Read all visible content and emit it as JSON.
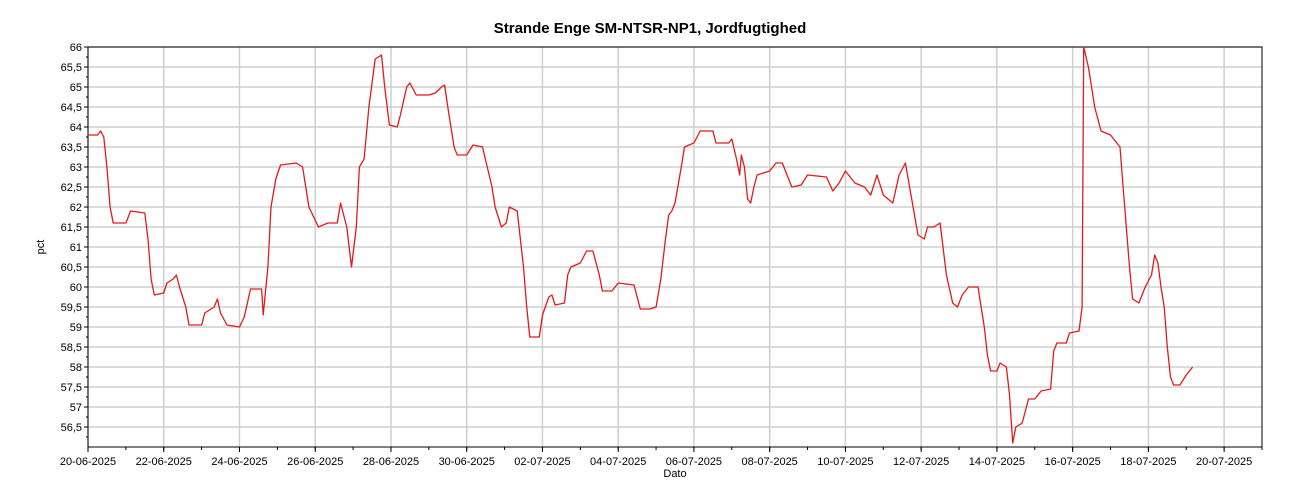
{
  "chart_data": {
    "type": "line",
    "title": "Strande Enge SM-NTSR-NP1, Jordfugtighed",
    "xlabel": "Dato",
    "ylabel": "pct",
    "grid": true,
    "xlim": [
      "2025-06-20",
      "2025-07-21"
    ],
    "ylim": [
      56,
      66
    ],
    "x_ticks": [
      "20-06-2025",
      "22-06-2025",
      "24-06-2025",
      "26-06-2025",
      "28-06-2025",
      "30-06-2025",
      "02-07-2025",
      "04-07-2025",
      "06-07-2025",
      "08-07-2025",
      "10-07-2025",
      "12-07-2025",
      "14-07-2025",
      "16-07-2025",
      "18-07-2025",
      "20-07-2025"
    ],
    "y_ticks": [
      "56,5",
      "57",
      "57,5",
      "58",
      "58,5",
      "59",
      "59,5",
      "60",
      "60,5",
      "61",
      "61,5",
      "62",
      "62,5",
      "63",
      "63,5",
      "64",
      "64,5",
      "65",
      "65,5",
      "66"
    ],
    "series": [
      {
        "color": "#e31a1c",
        "points": [
          [
            "2025-06-20T00:00",
            63.8
          ],
          [
            "2025-06-20T06:00",
            63.8
          ],
          [
            "2025-06-20T08:00",
            63.9
          ],
          [
            "2025-06-20T10:00",
            63.75
          ],
          [
            "2025-06-20T12:00",
            63.0
          ],
          [
            "2025-06-20T14:00",
            62.0
          ],
          [
            "2025-06-20T16:00",
            61.6
          ],
          [
            "2025-06-21T00:00",
            61.6
          ],
          [
            "2025-06-21T03:00",
            61.9
          ],
          [
            "2025-06-21T12:00",
            61.85
          ],
          [
            "2025-06-21T14:00",
            61.2
          ],
          [
            "2025-06-21T16:00",
            60.2
          ],
          [
            "2025-06-21T18:00",
            59.8
          ],
          [
            "2025-06-22T00:00",
            59.85
          ],
          [
            "2025-06-22T02:00",
            60.1
          ],
          [
            "2025-06-22T06:00",
            60.2
          ],
          [
            "2025-06-22T08:00",
            60.3
          ],
          [
            "2025-06-22T10:00",
            60.0
          ],
          [
            "2025-06-22T14:00",
            59.5
          ],
          [
            "2025-06-22T16:00",
            59.05
          ],
          [
            "2025-06-23T00:00",
            59.05
          ],
          [
            "2025-06-23T02:00",
            59.35
          ],
          [
            "2025-06-23T08:00",
            59.5
          ],
          [
            "2025-06-23T10:00",
            59.7
          ],
          [
            "2025-06-23T12:00",
            59.35
          ],
          [
            "2025-06-23T16:00",
            59.05
          ],
          [
            "2025-06-24T00:00",
            59.0
          ],
          [
            "2025-06-24T03:00",
            59.25
          ],
          [
            "2025-06-24T05:00",
            59.6
          ],
          [
            "2025-06-24T07:00",
            59.95
          ],
          [
            "2025-06-24T14:00",
            59.95
          ],
          [
            "2025-06-24T15:00",
            59.3
          ],
          [
            "2025-06-24T18:00",
            60.5
          ],
          [
            "2025-06-24T20:00",
            62.0
          ],
          [
            "2025-06-24T23:00",
            62.7
          ],
          [
            "2025-06-25T02:00",
            63.05
          ],
          [
            "2025-06-25T12:00",
            63.1
          ],
          [
            "2025-06-25T16:00",
            63.0
          ],
          [
            "2025-06-25T20:00",
            62.0
          ],
          [
            "2025-06-26T02:00",
            61.5
          ],
          [
            "2025-06-26T08:00",
            61.6
          ],
          [
            "2025-06-26T14:00",
            61.6
          ],
          [
            "2025-06-26T16:00",
            62.1
          ],
          [
            "2025-06-26T20:00",
            61.5
          ],
          [
            "2025-06-26T23:00",
            60.5
          ],
          [
            "2025-06-27T02:00",
            61.5
          ],
          [
            "2025-06-27T04:00",
            63.0
          ],
          [
            "2025-06-27T07:00",
            63.2
          ],
          [
            "2025-06-27T10:00",
            64.5
          ],
          [
            "2025-06-27T14:00",
            65.7
          ],
          [
            "2025-06-27T18:00",
            65.8
          ],
          [
            "2025-06-27T20:00",
            65.0
          ],
          [
            "2025-06-27T23:00",
            64.05
          ],
          [
            "2025-06-28T04:00",
            64.0
          ],
          [
            "2025-06-28T06:00",
            64.3
          ],
          [
            "2025-06-28T10:00",
            65.0
          ],
          [
            "2025-06-28T12:00",
            65.1
          ],
          [
            "2025-06-28T16:00",
            64.8
          ],
          [
            "2025-06-29T00:00",
            64.8
          ],
          [
            "2025-06-29T04:00",
            64.85
          ],
          [
            "2025-06-29T08:00",
            65.0
          ],
          [
            "2025-06-29T10:00",
            65.05
          ],
          [
            "2025-06-29T12:00",
            64.5
          ],
          [
            "2025-06-29T16:00",
            63.5
          ],
          [
            "2025-06-29T18:00",
            63.3
          ],
          [
            "2025-06-30T00:00",
            63.3
          ],
          [
            "2025-06-30T04:00",
            63.55
          ],
          [
            "2025-06-30T10:00",
            63.5
          ],
          [
            "2025-06-30T16:00",
            62.5
          ],
          [
            "2025-06-30T18:00",
            62.0
          ],
          [
            "2025-06-30T22:00",
            61.5
          ],
          [
            "2025-07-01T01:00",
            61.6
          ],
          [
            "2025-07-01T03:00",
            62.0
          ],
          [
            "2025-07-01T08:00",
            61.9
          ],
          [
            "2025-07-01T12:00",
            60.5
          ],
          [
            "2025-07-01T14:00",
            59.5
          ],
          [
            "2025-07-01T16:00",
            58.75
          ],
          [
            "2025-07-01T22:00",
            58.75
          ],
          [
            "2025-07-02T00:00",
            59.3
          ],
          [
            "2025-07-02T04:00",
            59.75
          ],
          [
            "2025-07-02T06:00",
            59.8
          ],
          [
            "2025-07-02T08:00",
            59.55
          ],
          [
            "2025-07-02T14:00",
            59.6
          ],
          [
            "2025-07-02T16:00",
            60.3
          ],
          [
            "2025-07-02T18:00",
            60.5
          ],
          [
            "2025-07-03T00:00",
            60.6
          ],
          [
            "2025-07-03T04:00",
            60.9
          ],
          [
            "2025-07-03T08:00",
            60.9
          ],
          [
            "2025-07-03T12:00",
            60.3
          ],
          [
            "2025-07-03T14:00",
            59.9
          ],
          [
            "2025-07-03T20:00",
            59.9
          ],
          [
            "2025-07-04T00:00",
            60.1
          ],
          [
            "2025-07-04T10:00",
            60.05
          ],
          [
            "2025-07-04T14:00",
            59.45
          ],
          [
            "2025-07-04T20:00",
            59.45
          ],
          [
            "2025-07-05T00:00",
            59.5
          ],
          [
            "2025-07-05T03:00",
            60.2
          ],
          [
            "2025-07-05T06:00",
            61.2
          ],
          [
            "2025-07-05T08:00",
            61.8
          ],
          [
            "2025-07-05T10:00",
            61.9
          ],
          [
            "2025-07-05T12:00",
            62.1
          ],
          [
            "2025-07-05T16:00",
            63.0
          ],
          [
            "2025-07-05T18:00",
            63.5
          ],
          [
            "2025-07-06T00:00",
            63.6
          ],
          [
            "2025-07-06T04:00",
            63.9
          ],
          [
            "2025-07-06T12:00",
            63.9
          ],
          [
            "2025-07-06T14:00",
            63.6
          ],
          [
            "2025-07-06T22:00",
            63.6
          ],
          [
            "2025-07-07T00:00",
            63.7
          ],
          [
            "2025-07-07T03:00",
            63.2
          ],
          [
            "2025-07-07T05:00",
            62.8
          ],
          [
            "2025-07-07T06:00",
            63.3
          ],
          [
            "2025-07-07T08:00",
            63.0
          ],
          [
            "2025-07-07T10:00",
            62.2
          ],
          [
            "2025-07-07T12:00",
            62.1
          ],
          [
            "2025-07-07T14:00",
            62.5
          ],
          [
            "2025-07-07T16:00",
            62.8
          ],
          [
            "2025-07-08T00:00",
            62.9
          ],
          [
            "2025-07-08T04:00",
            63.1
          ],
          [
            "2025-07-08T08:00",
            63.1
          ],
          [
            "2025-07-08T14:00",
            62.5
          ],
          [
            "2025-07-08T20:00",
            62.55
          ],
          [
            "2025-07-09T00:00",
            62.8
          ],
          [
            "2025-07-09T12:00",
            62.75
          ],
          [
            "2025-07-09T16:00",
            62.4
          ],
          [
            "2025-07-09T20:00",
            62.6
          ],
          [
            "2025-07-10T00:00",
            62.9
          ],
          [
            "2025-07-10T06:00",
            62.6
          ],
          [
            "2025-07-10T12:00",
            62.5
          ],
          [
            "2025-07-10T16:00",
            62.3
          ],
          [
            "2025-07-10T20:00",
            62.8
          ],
          [
            "2025-07-11T00:00",
            62.3
          ],
          [
            "2025-07-11T06:00",
            62.1
          ],
          [
            "2025-07-11T10:00",
            62.8
          ],
          [
            "2025-07-11T14:00",
            63.1
          ],
          [
            "2025-07-11T18:00",
            62.2
          ],
          [
            "2025-07-11T22:00",
            61.3
          ],
          [
            "2025-07-12T02:00",
            61.2
          ],
          [
            "2025-07-12T04:00",
            61.5
          ],
          [
            "2025-07-12T08:00",
            61.5
          ],
          [
            "2025-07-12T12:00",
            61.6
          ],
          [
            "2025-07-12T16:00",
            60.3
          ],
          [
            "2025-07-12T20:00",
            59.6
          ],
          [
            "2025-07-12T23:00",
            59.5
          ],
          [
            "2025-07-13T02:00",
            59.8
          ],
          [
            "2025-07-13T06:00",
            60.0
          ],
          [
            "2025-07-13T12:00",
            60.0
          ],
          [
            "2025-07-13T16:00",
            59.0
          ],
          [
            "2025-07-13T18:00",
            58.3
          ],
          [
            "2025-07-13T20:00",
            57.9
          ],
          [
            "2025-07-14T00:00",
            57.9
          ],
          [
            "2025-07-14T02:00",
            58.1
          ],
          [
            "2025-07-14T06:00",
            58.0
          ],
          [
            "2025-07-14T08:00",
            57.3
          ],
          [
            "2025-07-14T10:00",
            56.1
          ],
          [
            "2025-07-14T12:00",
            56.5
          ],
          [
            "2025-07-14T16:00",
            56.6
          ],
          [
            "2025-07-14T20:00",
            57.2
          ],
          [
            "2025-07-15T00:00",
            57.2
          ],
          [
            "2025-07-15T04:00",
            57.4
          ],
          [
            "2025-07-15T10:00",
            57.45
          ],
          [
            "2025-07-15T12:00",
            58.4
          ],
          [
            "2025-07-15T14:00",
            58.6
          ],
          [
            "2025-07-15T20:00",
            58.6
          ],
          [
            "2025-07-15T22:00",
            58.85
          ],
          [
            "2025-07-16T04:00",
            58.9
          ],
          [
            "2025-07-16T06:00",
            59.5
          ],
          [
            "2025-07-16T07:00",
            66.0
          ],
          [
            "2025-07-16T10:00",
            65.5
          ],
          [
            "2025-07-16T14:00",
            64.5
          ],
          [
            "2025-07-16T18:00",
            63.9
          ],
          [
            "2025-07-17T00:00",
            63.8
          ],
          [
            "2025-07-17T06:00",
            63.5
          ],
          [
            "2025-07-17T08:00",
            62.5
          ],
          [
            "2025-07-17T12:00",
            60.5
          ],
          [
            "2025-07-17T14:00",
            59.7
          ],
          [
            "2025-07-17T18:00",
            59.6
          ],
          [
            "2025-07-17T22:00",
            60.0
          ],
          [
            "2025-07-18T02:00",
            60.3
          ],
          [
            "2025-07-18T04:00",
            60.8
          ],
          [
            "2025-07-18T06:00",
            60.6
          ],
          [
            "2025-07-18T08:00",
            60.0
          ],
          [
            "2025-07-18T10:00",
            59.5
          ],
          [
            "2025-07-18T12:00",
            58.5
          ],
          [
            "2025-07-18T14:00",
            57.75
          ],
          [
            "2025-07-18T16:00",
            57.55
          ],
          [
            "2025-07-18T20:00",
            57.55
          ],
          [
            "2025-07-19T00:00",
            57.8
          ],
          [
            "2025-07-19T04:00",
            58.0
          ]
        ]
      }
    ]
  }
}
